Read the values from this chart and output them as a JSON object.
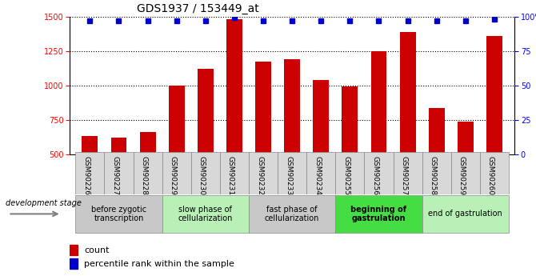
{
  "title": "GDS1937 / 153449_at",
  "samples": [
    "GSM90226",
    "GSM90227",
    "GSM90228",
    "GSM90229",
    "GSM90230",
    "GSM90231",
    "GSM90232",
    "GSM90233",
    "GSM90234",
    "GSM90255",
    "GSM90256",
    "GSM90257",
    "GSM90258",
    "GSM90259",
    "GSM90260"
  ],
  "counts": [
    635,
    625,
    665,
    1000,
    1120,
    1480,
    1175,
    1190,
    1040,
    995,
    1250,
    1390,
    840,
    740,
    1360
  ],
  "percentiles": [
    97,
    97,
    97,
    97,
    97,
    99,
    97,
    97,
    97,
    97,
    97,
    97,
    97,
    97,
    98
  ],
  "ylim_left": [
    500,
    1500
  ],
  "ylim_right": [
    0,
    100
  ],
  "yticks_left": [
    500,
    750,
    1000,
    1250,
    1500
  ],
  "yticks_right": [
    0,
    25,
    50,
    75,
    100
  ],
  "bar_color": "#cc0000",
  "dot_color": "#0000cc",
  "bar_width": 0.55,
  "stage_groups": [
    {
      "label": "before zygotic\ntranscription",
      "samples_idx": [
        0,
        1,
        2
      ],
      "bg": "#c8c8c8"
    },
    {
      "label": "slow phase of\ncellularization",
      "samples_idx": [
        3,
        4,
        5
      ],
      "bg": "#b8f0b8"
    },
    {
      "label": "fast phase of\ncellularization",
      "samples_idx": [
        6,
        7,
        8
      ],
      "bg": "#c8c8c8"
    },
    {
      "label": "beginning of\ngastrulation",
      "samples_idx": [
        9,
        10,
        11
      ],
      "bg": "#44dd44",
      "bold": true
    },
    {
      "label": "end of gastrulation",
      "samples_idx": [
        12,
        13,
        14
      ],
      "bg": "#b8f0b8",
      "bold": false
    }
  ],
  "dev_stage_label": "development stage",
  "legend_count_label": "count",
  "legend_pct_label": "percentile rank within the sample",
  "title_fontsize": 10,
  "tick_fontsize": 7,
  "sample_label_fontsize": 6.5,
  "stage_fontsize": 7,
  "legend_fontsize": 8
}
